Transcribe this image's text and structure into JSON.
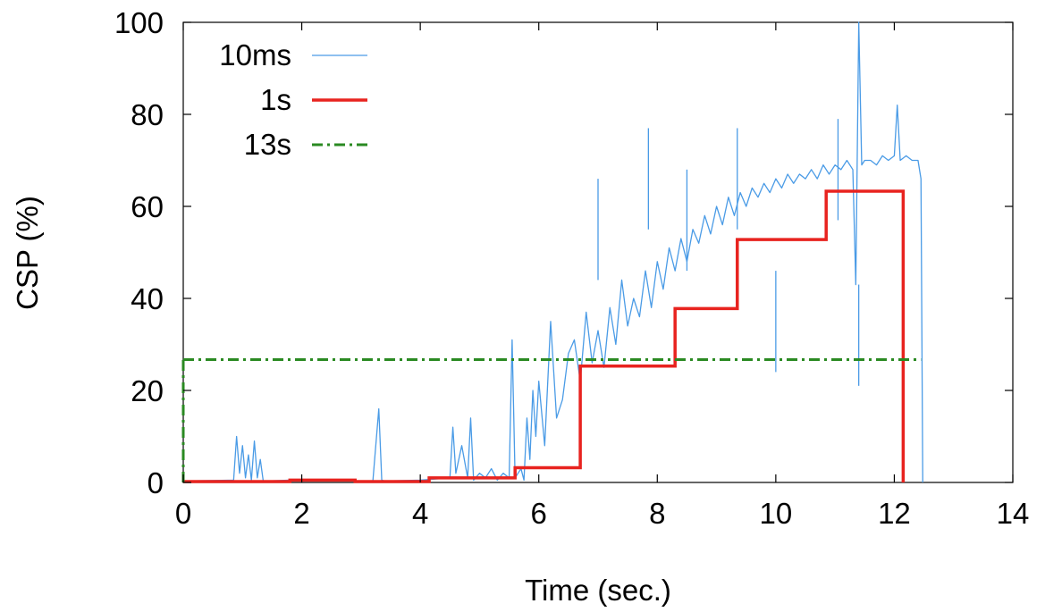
{
  "chart_data": {
    "type": "line",
    "title": "",
    "xlabel": "Time (sec.)",
    "ylabel": "CSP (%)",
    "xlim": [
      0,
      14
    ],
    "ylim": [
      0,
      100
    ],
    "xticks": [
      "0",
      "2",
      "4",
      "6",
      "8",
      "10",
      "12",
      "14"
    ],
    "yticks": [
      "0",
      "20",
      "40",
      "60",
      "80",
      "100"
    ],
    "grid": false,
    "legend_position": "top-left",
    "series": [
      {
        "name": "10ms",
        "style": "thin-line",
        "color": "#4a9be6",
        "x": [
          0.0,
          0.85,
          0.9,
          0.95,
          1.0,
          1.05,
          1.1,
          1.15,
          1.2,
          1.25,
          1.3,
          1.35,
          1.4,
          1.8,
          2.5,
          3.2,
          3.3,
          3.35,
          3.4,
          4.0,
          4.5,
          4.55,
          4.6,
          4.7,
          4.8,
          4.85,
          4.9,
          5.0,
          5.1,
          5.2,
          5.3,
          5.4,
          5.5,
          5.55,
          5.6,
          5.65,
          5.7,
          5.75,
          5.8,
          5.85,
          5.9,
          5.95,
          6.0,
          6.1,
          6.2,
          6.3,
          6.4,
          6.5,
          6.6,
          6.7,
          6.8,
          6.9,
          7.0,
          7.1,
          7.2,
          7.3,
          7.4,
          7.5,
          7.6,
          7.7,
          7.8,
          7.9,
          8.0,
          8.1,
          8.2,
          8.3,
          8.4,
          8.5,
          8.6,
          8.7,
          8.8,
          8.9,
          9.0,
          9.1,
          9.2,
          9.3,
          9.4,
          9.5,
          9.6,
          9.7,
          9.8,
          9.9,
          10.0,
          10.1,
          10.2,
          10.3,
          10.4,
          10.5,
          10.6,
          10.7,
          10.8,
          10.9,
          11.0,
          11.1,
          11.2,
          11.3,
          11.35,
          11.4,
          11.45,
          11.5,
          11.6,
          11.7,
          11.8,
          11.9,
          12.0,
          12.05,
          12.1,
          12.2,
          12.3,
          12.4,
          12.45,
          12.48
        ],
        "y": [
          0.3,
          0.5,
          10,
          2,
          8,
          1,
          6,
          0.5,
          9,
          1,
          5,
          0.3,
          0.3,
          0.5,
          0.4,
          0.3,
          16,
          0.5,
          0.3,
          0.5,
          1,
          12,
          2,
          8,
          1,
          14,
          0.5,
          2,
          1,
          3,
          0.5,
          2,
          1,
          31,
          1,
          2,
          3,
          0.5,
          14,
          5,
          20,
          10,
          22,
          8,
          35,
          14,
          18,
          28,
          31,
          22,
          37,
          26,
          33,
          25,
          38,
          30,
          44,
          34,
          40,
          36,
          46,
          38,
          48,
          42,
          51,
          46,
          53,
          48,
          55,
          52,
          58,
          54,
          60,
          56,
          62,
          58,
          63,
          60,
          64,
          62,
          65,
          63,
          66,
          64,
          67,
          65,
          67,
          66,
          68,
          66,
          69,
          67,
          69,
          68,
          70,
          68,
          43,
          100,
          69,
          70,
          70,
          69,
          71,
          70,
          71,
          82,
          70,
          71,
          70,
          70,
          66,
          0
        ],
        "spikes": [
          {
            "x": 7.0,
            "y": 66
          },
          {
            "x": 7.85,
            "y": 77
          },
          {
            "x": 8.5,
            "y": 68
          },
          {
            "x": 9.35,
            "y": 77
          },
          {
            "x": 10.0,
            "y": 46
          },
          {
            "x": 11.05,
            "y": 79
          },
          {
            "x": 11.4,
            "y": 43
          }
        ]
      },
      {
        "name": "1s",
        "style": "step",
        "color": "#e8231f",
        "x": [
          0,
          1.8,
          2.9,
          4.15,
          5.6,
          6.7,
          8.3,
          9.35,
          10.85,
          12.15
        ],
        "y": [
          0.2,
          0.5,
          0.2,
          1.0,
          3.2,
          25.3,
          37.8,
          52.8,
          63.3,
          0
        ]
      },
      {
        "name": "13s",
        "style": "dash-dot",
        "color": "#2a8a22",
        "x": [
          0,
          12.45
        ],
        "y": [
          26.7,
          26.7
        ]
      }
    ]
  }
}
